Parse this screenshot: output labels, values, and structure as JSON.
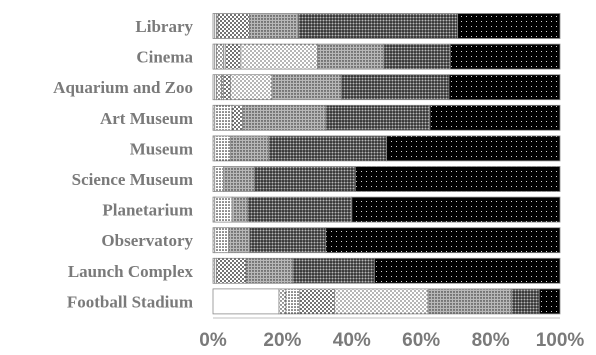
{
  "chart_data": {
    "type": "bar",
    "orientation": "horizontal",
    "stacked": "100%",
    "title": "",
    "xlabel": "",
    "ylabel": "",
    "xlim": [
      0,
      100
    ],
    "xticks": [
      "0%",
      "20%",
      "40%",
      "60%",
      "80%",
      "100%"
    ],
    "grid": false,
    "legend": "none",
    "categories": [
      "Library",
      "Cinema",
      "Aquarium and Zoo",
      "Art Museum",
      "Museum",
      "Science Museum",
      "Planetarium",
      "Observatory",
      "Launch Complex",
      "Football Stadium"
    ],
    "series": [
      {
        "fill": "white",
        "values": [
          0.5,
          0.5,
          0.5,
          0,
          0,
          0,
          0,
          0,
          0,
          19
        ]
      },
      {
        "fill": "dots-1",
        "values": [
          0.5,
          0.5,
          0.5,
          0,
          0,
          0,
          0,
          0,
          0,
          0
        ]
      },
      {
        "fill": "dots-2",
        "values": [
          0.5,
          2,
          1.5,
          0.5,
          0.5,
          0.5,
          0.5,
          0.5,
          0.5,
          2
        ]
      },
      {
        "fill": "dots-3",
        "values": [
          0,
          0.5,
          0.5,
          5,
          4.5,
          2.5,
          5,
          4,
          0.5,
          4
        ]
      },
      {
        "fill": "dots-4",
        "values": [
          9,
          4.5,
          2,
          3,
          0,
          0,
          0,
          0,
          8.5,
          10
        ]
      },
      {
        "fill": "dots-5",
        "values": [
          0,
          22,
          12,
          0,
          0,
          0,
          0,
          0,
          0,
          27
        ]
      },
      {
        "fill": "dots-6",
        "values": [
          14,
          19,
          20,
          24,
          11,
          9,
          4.5,
          6,
          13.5,
          24
        ]
      },
      {
        "fill": "dots-7",
        "values": [
          46,
          19,
          31,
          30,
          34,
          29,
          30,
          22,
          23.5,
          8
        ]
      },
      {
        "fill": "dots-8",
        "values": [
          29.5,
          31.5,
          32,
          37.5,
          50,
          59,
          60,
          67.5,
          53.5,
          6
        ]
      }
    ]
  }
}
